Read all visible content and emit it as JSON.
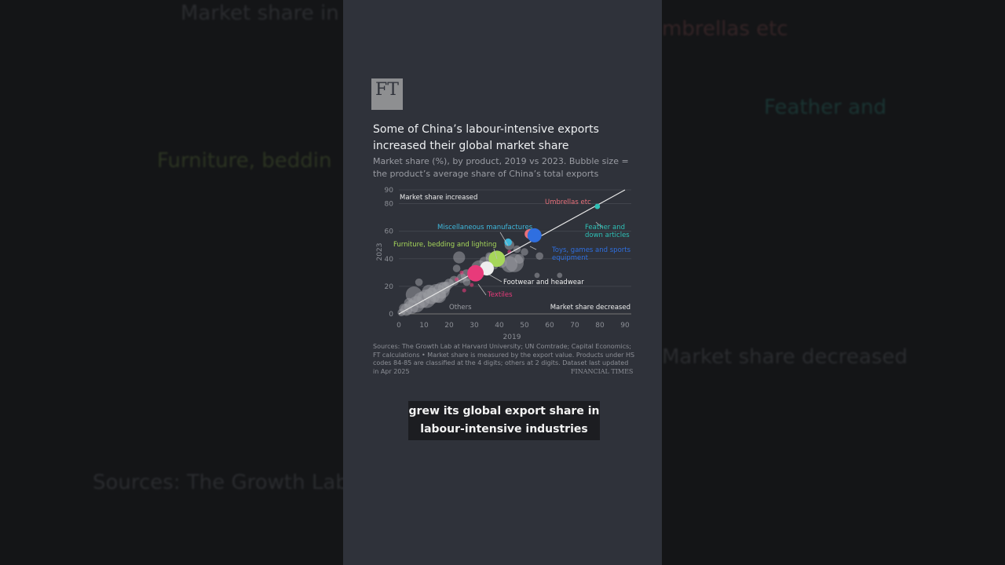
{
  "logo": "FT",
  "title": "Some of China’s labour-intensive exports increased their global market share",
  "subtitle": "Market share (%), by product, 2019 vs 2023. Bubble size = the product’s average share of China’s total exports",
  "sources": "Sources: The Growth Lab at Harvard University; UN Comtrade; Capital Economics; FT calculations • Market share is measured by the export value. Products under HS codes 84-85 are classified at the 4 digits; others at 2 digits. Dataset last updated in Apr 2025",
  "publisher": "FINANCIAL TIMES",
  "caption": "grew its global export share in labour-intensive industries",
  "chart_data": {
    "type": "scatter",
    "bubble": true,
    "xlabel": "2019",
    "ylabel": "2023",
    "xlim": [
      0,
      90
    ],
    "ylim": [
      0,
      90
    ],
    "xticks": [
      0,
      10,
      20,
      30,
      40,
      50,
      60,
      70,
      80,
      90
    ],
    "yticks": [
      0,
      20,
      40,
      60,
      80,
      90
    ],
    "grid": true,
    "reference_line": "y = x",
    "annotations": {
      "upper": "Market share increased",
      "lower": "Market share decreased"
    },
    "highlighted": [
      {
        "name": "Umbrellas etc",
        "x": 52,
        "y": 58,
        "size": 3,
        "color": "#e8707a"
      },
      {
        "name": "Toys, games and sports equipment",
        "x": 54,
        "y": 57,
        "size": 5,
        "color": "#2f6fe0"
      },
      {
        "name": "Feather and down articles",
        "x": 79,
        "y": 78,
        "size": 1,
        "color": "#2fc0b6"
      },
      {
        "name": "Miscellaneous manufactures",
        "x": 43.5,
        "y": 52,
        "size": 2,
        "color": "#3fb8dc"
      },
      {
        "name": "Furniture, bedding and lighting",
        "x": 39,
        "y": 40,
        "size": 6,
        "color": "#a6d65a"
      },
      {
        "name": "Footwear and headwear",
        "x": 35,
        "y": 33,
        "size": 5,
        "color": "#eeeeee"
      },
      {
        "name": "Textiles",
        "x": 30.5,
        "y": 29.5,
        "size": 6,
        "color": "#e83a7a"
      }
    ],
    "others": {
      "name": "Others",
      "color": "#9a9ca2",
      "points": [
        [
          1,
          1,
          2
        ],
        [
          3,
          3,
          4
        ],
        [
          5,
          5,
          5
        ],
        [
          7,
          7,
          6
        ],
        [
          9,
          10,
          6
        ],
        [
          11,
          11,
          7
        ],
        [
          13,
          13,
          6
        ],
        [
          15,
          15,
          7
        ],
        [
          17,
          17,
          6
        ],
        [
          6,
          14,
          6
        ],
        [
          12,
          16,
          5
        ],
        [
          18,
          19,
          4
        ],
        [
          20,
          22,
          3
        ],
        [
          22,
          24,
          3
        ],
        [
          25,
          26,
          3
        ],
        [
          27,
          28,
          4
        ],
        [
          32,
          33,
          6
        ],
        [
          34,
          38,
          3
        ],
        [
          36,
          42,
          2
        ],
        [
          37,
          40,
          4
        ],
        [
          41,
          37,
          3
        ],
        [
          44,
          36,
          6
        ],
        [
          46,
          37,
          7
        ],
        [
          48,
          40,
          3
        ],
        [
          24,
          41,
          4
        ],
        [
          44,
          50,
          3
        ],
        [
          50,
          45,
          2
        ],
        [
          56,
          42,
          2
        ],
        [
          47,
          47,
          2
        ],
        [
          55,
          28,
          1
        ],
        [
          64,
          28,
          1
        ],
        [
          23,
          33,
          2
        ],
        [
          8,
          23,
          2
        ],
        [
          4,
          8,
          3
        ],
        [
          2,
          4,
          3
        ],
        [
          16,
          13,
          5
        ],
        [
          19,
          20,
          3
        ],
        [
          27,
          23,
          2
        ],
        [
          38,
          35,
          2
        ]
      ]
    },
    "others_pink": [
      [
        26,
        17
      ],
      [
        23,
        25
      ],
      [
        25,
        30
      ],
      [
        33,
        28
      ],
      [
        29,
        21
      ],
      [
        36,
        36
      ],
      [
        44,
        45
      ]
    ]
  }
}
